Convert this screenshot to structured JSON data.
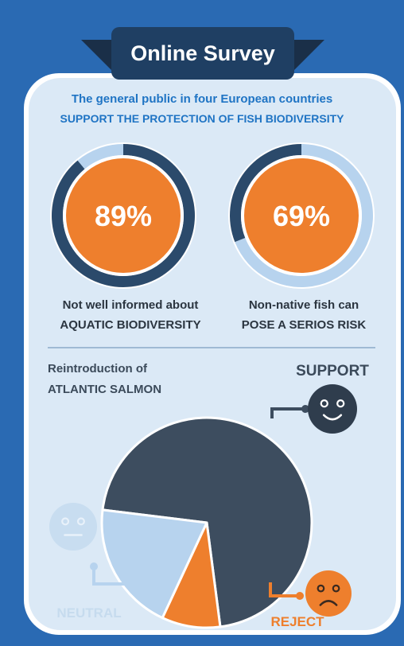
{
  "title": "Online Survey",
  "intro": {
    "line1": "The general public in four European countries",
    "line2": "SUPPORT THE PROTECTION OF FISH BIODIVERSITY"
  },
  "colors": {
    "background": "#2a6ab3",
    "panel": "#dbe9f6",
    "dark_navy": "#2b4a6b",
    "slate": "#3d4d5f",
    "light_blue": "#b7d3ee",
    "orange": "#ee7f2d",
    "title_blue": "#1f74c4",
    "neutral_text": "#c6dbee"
  },
  "chart_data": [
    {
      "type": "pie",
      "variant": "donut",
      "value_label": "89%",
      "caption_line1": "Not well informed about",
      "caption_line2": "AQUATIC BIODIVERSITY",
      "slices": [
        {
          "value": 89,
          "color": "#2b4a6b"
        },
        {
          "value": 11,
          "color": "#b7d3ee"
        }
      ]
    },
    {
      "type": "pie",
      "variant": "donut",
      "value_label": "69%",
      "caption_line1": "Non-native fish can",
      "caption_line2": "POSE A SERIOS RISK",
      "slices": [
        {
          "value": 69,
          "color": "#b7d3ee"
        },
        {
          "value": 31,
          "color": "#2b4a6b"
        }
      ]
    },
    {
      "type": "pie",
      "title_line1": "Reintroduction of",
      "title_line2": "ATLANTIC SALMON",
      "slices": [
        {
          "label": "SUPPORT",
          "value": 71,
          "color": "#3d4d5f",
          "icon": "smiley-happy-icon"
        },
        {
          "label": "REJECT",
          "value": 9,
          "color": "#ee7f2d",
          "icon": "smiley-sad-icon"
        },
        {
          "label": "NEUTRAL",
          "value": 20,
          "color": "#b7d3ee",
          "icon": "smiley-neutral-icon"
        }
      ]
    }
  ]
}
